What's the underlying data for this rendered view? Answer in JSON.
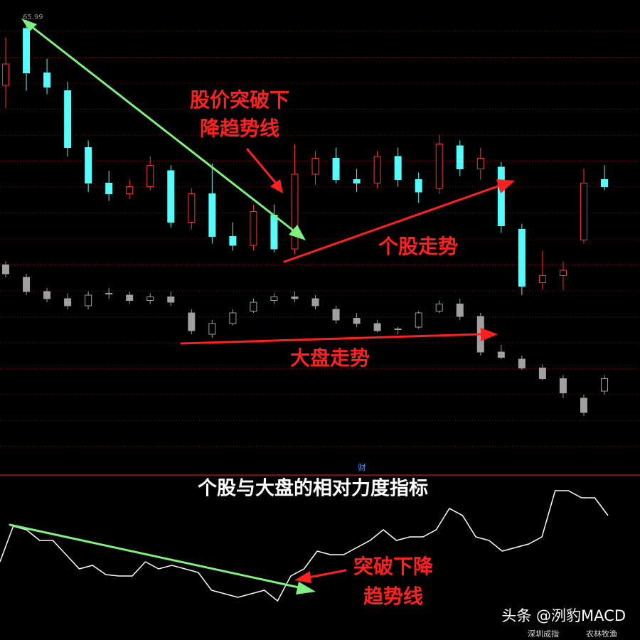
{
  "chart_data": [
    {
      "type": "candlestick",
      "up_color": "#ff3232",
      "down_color": "#54fcfc",
      "ylim": [
        50,
        66.5
      ],
      "open": [
        62.3,
        65.5,
        63.0,
        62.0,
        58.8,
        56.8,
        56.2,
        56.6,
        57.5,
        54.6,
        56.2,
        53.8,
        53.3,
        55.0,
        53.1,
        57.3,
        58.2,
        57.0,
        56.8,
        58.3,
        57.0,
        56.5,
        58.9,
        57.6,
        57.7,
        54.2,
        51.2,
        51.6,
        53.6,
        57.0
      ],
      "high": [
        65.0,
        65.99,
        63.8,
        62.5,
        59.2,
        57.5,
        57.0,
        58.3,
        57.8,
        56.5,
        57.9,
        54.6,
        55.6,
        55.6,
        59.0,
        58.6,
        58.8,
        57.6,
        58.6,
        58.8,
        57.4,
        59.5,
        59.2,
        58.8,
        58.0,
        54.5,
        53.0,
        52.4,
        57.6,
        57.8
      ],
      "low": [
        61.0,
        62.0,
        61.8,
        58.3,
        56.3,
        55.8,
        55.9,
        56.4,
        54.3,
        54.2,
        53.4,
        53.0,
        53.0,
        52.9,
        52.8,
        56.7,
        56.8,
        56.3,
        56.5,
        56.6,
        55.7,
        56.2,
        57.2,
        57.0,
        54.0,
        50.5,
        50.8,
        50.8,
        53.4,
        56.4
      ],
      "close": [
        63.5,
        63.0,
        62.2,
        58.8,
        56.8,
        56.2,
        56.6,
        57.8,
        54.6,
        56.2,
        53.8,
        53.3,
        55.2,
        53.1,
        57.3,
        58.2,
        57.0,
        56.8,
        58.3,
        57.0,
        56.3,
        59.0,
        57.6,
        58.2,
        54.4,
        51.0,
        51.6,
        51.9,
        56.8,
        56.6
      ]
    },
    {
      "type": "candlestick",
      "up_color": "#a0a0a0",
      "down_color": "#a0a0a0",
      "ylim": [
        9000,
        10000
      ],
      "open": [
        9950,
        9880,
        9800,
        9760,
        9720,
        9790,
        9780,
        9750,
        9770,
        9680,
        9560,
        9620,
        9690,
        9750,
        9770,
        9760,
        9700,
        9650,
        9620,
        9590,
        9600,
        9690,
        9730,
        9660,
        9460,
        9420,
        9370,
        9310,
        9200,
        9240
      ],
      "high": [
        9970,
        9900,
        9820,
        9790,
        9800,
        9820,
        9800,
        9790,
        9800,
        9700,
        9640,
        9700,
        9760,
        9790,
        9800,
        9780,
        9720,
        9680,
        9640,
        9600,
        9690,
        9750,
        9760,
        9680,
        9500,
        9440,
        9390,
        9330,
        9220,
        9330
      ],
      "low": [
        9880,
        9780,
        9740,
        9700,
        9700,
        9760,
        9730,
        9730,
        9720,
        9560,
        9540,
        9610,
        9680,
        9730,
        9740,
        9700,
        9620,
        9600,
        9570,
        9560,
        9590,
        9680,
        9640,
        9440,
        9420,
        9360,
        9300,
        9200,
        9100,
        9220
      ],
      "close": [
        9900,
        9800,
        9760,
        9720,
        9780,
        9790,
        9750,
        9770,
        9740,
        9580,
        9620,
        9680,
        9740,
        9770,
        9760,
        9720,
        9640,
        9620,
        9580,
        9590,
        9680,
        9730,
        9660,
        9460,
        9430,
        9370,
        9310,
        9230,
        9120,
        9310
      ]
    },
    {
      "type": "line",
      "title": "个股与大盘的相对力度指标",
      "color": "#ffffff",
      "ylim": [
        0,
        100
      ],
      "values": [
        45,
        70,
        67.5,
        60,
        60,
        50,
        40,
        42.5,
        36,
        35,
        35,
        45,
        40,
        42.5,
        40,
        37.5,
        25,
        22.5,
        20,
        22.5,
        25,
        17.5,
        35,
        40,
        52.5,
        50,
        50,
        55,
        60,
        67.5,
        60,
        62.5,
        62.5,
        67.5,
        82.5,
        77.5,
        62.5,
        60,
        52.5,
        55,
        57.5,
        62.5,
        95,
        95,
        90,
        90,
        77.5
      ]
    }
  ],
  "annotations": {
    "breakout_1": "股价突破下",
    "breakout_2": "降趋势线",
    "stock_trend": "个股走势",
    "market_trend": "大盘走势",
    "marker": "财",
    "breakout_3": "突破下降",
    "breakout_4": "趋势线",
    "watermark": "头条 @洌豹MACD",
    "index_name": "深圳成指",
    "sector_name": "农林牧渔"
  }
}
